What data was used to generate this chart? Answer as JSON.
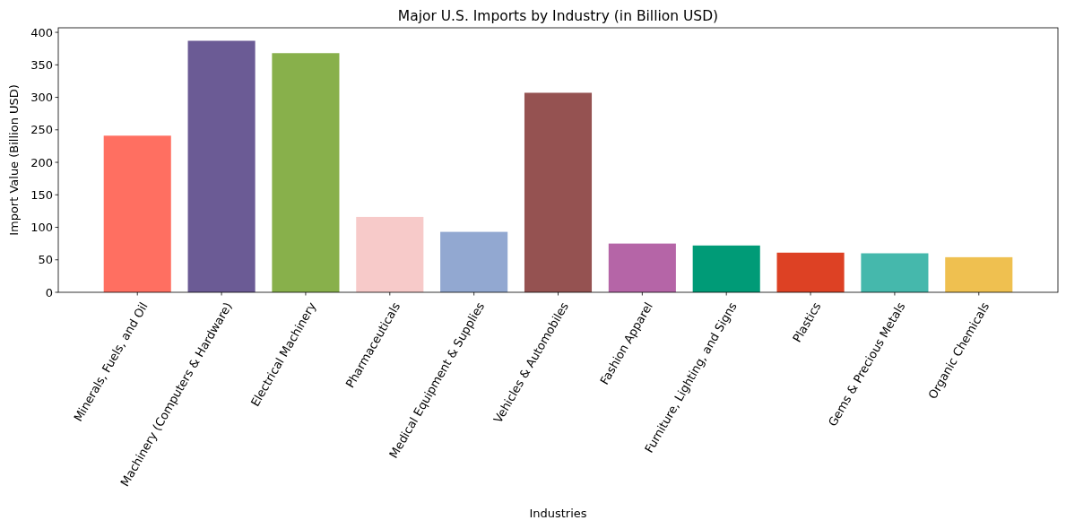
{
  "chart_data": {
    "type": "bar",
    "title": "Major U.S. Imports by Industry (in Billion USD)",
    "xlabel": "Industries",
    "ylabel": "Import Value (Billion USD)",
    "categories": [
      "Minerals, Fuels, and Oil",
      "Machinery (Computers & Hardware)",
      "Electrical Machinery",
      "Pharmaceuticals",
      "Medical Equipment & Supplies",
      "Vehicles & Automobiles",
      "Fashion Apparel",
      "Furniture, Lighting, and Signs",
      "Plastics",
      "Gems & Precious Metals",
      "Organic Chemicals"
    ],
    "values": [
      241,
      387,
      368,
      116,
      93,
      307,
      75,
      72,
      61,
      60,
      54
    ],
    "colors": [
      "#ff6f61",
      "#6b5b95",
      "#88b04b",
      "#f7cac9",
      "#92a8d1",
      "#955251",
      "#b565a7",
      "#009b77",
      "#dd4124",
      "#45b8ac",
      "#efc050"
    ],
    "ylim": [
      0,
      407
    ],
    "yticks": [
      0,
      50,
      100,
      150,
      200,
      250,
      300,
      350,
      400
    ],
    "grid": false
  }
}
